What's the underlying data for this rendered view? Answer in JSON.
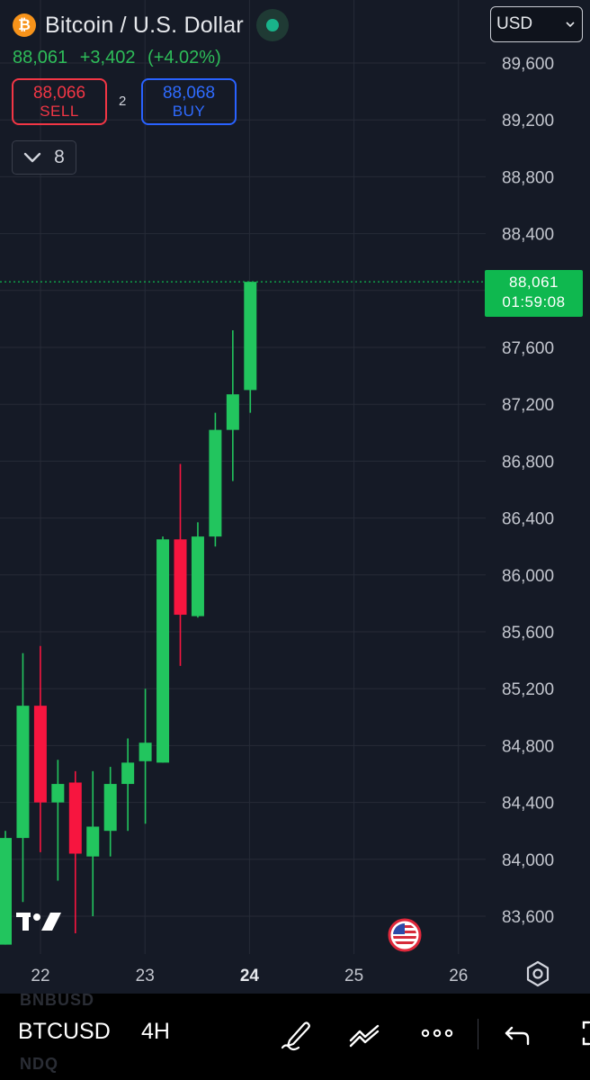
{
  "header": {
    "symbol_title": "Bitcoin / U.S. Dollar",
    "coin_glyph": "₿",
    "last_price": "88,061",
    "change": "+3,402",
    "change_pct": "(+4.02%)"
  },
  "trade": {
    "sell_price": "88,066",
    "sell_label": "SELL",
    "spread": "2",
    "buy_price": "88,068",
    "buy_label": "BUY"
  },
  "collapse_count": "8",
  "currency_selector": "USD",
  "price_tag": {
    "price": "88,061",
    "countdown": "01:59:08"
  },
  "bottom_bar": {
    "symbol": "BTCUSD",
    "interval": "4H",
    "ghost_top": "BNBUSD",
    "ghost_bottom": "NDQ"
  },
  "colors": {
    "up": "#22c55e",
    "down": "#f7153f",
    "background": "#151a26",
    "grid": "#262b37",
    "price_line": "#0fb84f"
  },
  "chart_data": {
    "type": "candlestick",
    "interval": "4H",
    "y_ticks": [
      89600,
      89200,
      88800,
      88400,
      88000,
      87600,
      87200,
      86800,
      86400,
      86000,
      85600,
      85200,
      84800,
      84400,
      84000,
      83600
    ],
    "y_tick_labels": [
      "89,600",
      "89,200",
      "88,800",
      "88,400",
      "88,000",
      "87,600",
      "87,200",
      "86,800",
      "86,400",
      "86,000",
      "85,600",
      "85,200",
      "84,800",
      "84,400",
      "84,000",
      "83,600"
    ],
    "x_ticks": [
      22,
      23,
      24,
      25,
      26
    ],
    "x_tick_labels": [
      "22",
      "23",
      "24",
      "25",
      "26"
    ],
    "x_bold_tick": "24",
    "current_price": 88061,
    "candles": [
      {
        "i": 0,
        "o": 83400,
        "h": 84200,
        "l": 83400,
        "c": 84150
      },
      {
        "i": 1,
        "o": 84150,
        "h": 85450,
        "l": 83700,
        "c": 85080
      },
      {
        "i": 2,
        "o": 85080,
        "h": 85500,
        "l": 84050,
        "c": 84400
      },
      {
        "i": 3,
        "o": 84400,
        "h": 84700,
        "l": 83850,
        "c": 84530
      },
      {
        "i": 4,
        "o": 84540,
        "h": 84620,
        "l": 83480,
        "c": 84040
      },
      {
        "i": 5,
        "o": 84020,
        "h": 84620,
        "l": 83600,
        "c": 84230
      },
      {
        "i": 6,
        "o": 84200,
        "h": 84650,
        "l": 84020,
        "c": 84530
      },
      {
        "i": 7,
        "o": 84530,
        "h": 84850,
        "l": 84200,
        "c": 84680
      },
      {
        "i": 8,
        "o": 84690,
        "h": 85200,
        "l": 84250,
        "c": 84820
      },
      {
        "i": 9,
        "o": 84680,
        "h": 86270,
        "l": 84680,
        "c": 86250
      },
      {
        "i": 10,
        "o": 86250,
        "h": 86780,
        "l": 85360,
        "c": 85720
      },
      {
        "i": 11,
        "o": 85710,
        "h": 86370,
        "l": 85700,
        "c": 86270
      },
      {
        "i": 12,
        "o": 86270,
        "h": 87140,
        "l": 86200,
        "c": 87020
      },
      {
        "i": 13,
        "o": 87020,
        "h": 87720,
        "l": 86660,
        "c": 87270
      },
      {
        "i": 14,
        "o": 87300,
        "h": 88061,
        "l": 87140,
        "c": 88061
      }
    ]
  }
}
